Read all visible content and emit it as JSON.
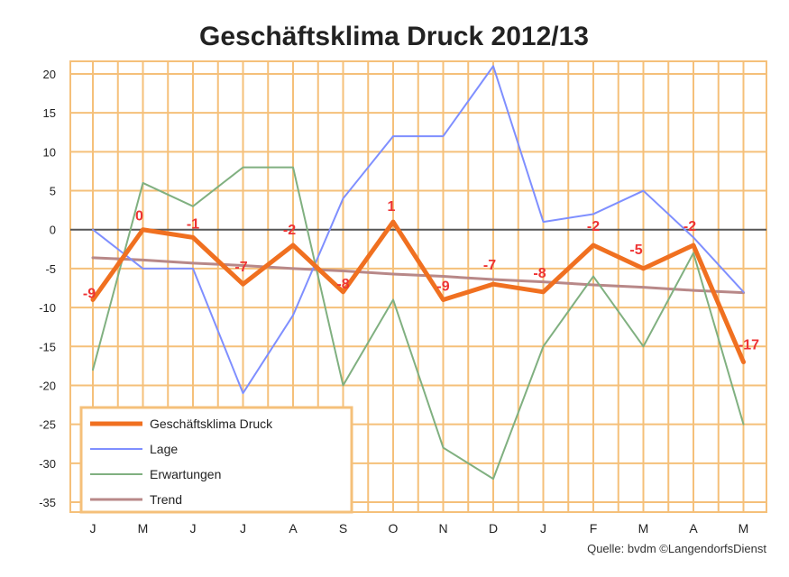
{
  "chart_data": {
    "type": "line",
    "title": "Geschäftsklima Druck 2012/13",
    "xlabel": "",
    "ylabel": "",
    "categories": [
      "J",
      "M",
      "J",
      "J",
      "A",
      "S",
      "O",
      "N",
      "D",
      "J",
      "F",
      "M",
      "A",
      "M"
    ],
    "y_ticks": [
      "20",
      "15",
      "10",
      "5",
      "0",
      "-5",
      "-10",
      "-15",
      "-20",
      "-25",
      "-30",
      "-35"
    ],
    "ylim": [
      -35,
      20
    ],
    "grid": true,
    "legend_position": "bottom-left",
    "series": [
      {
        "name": "Geschäftsklima Druck",
        "color": "#f07020",
        "values": [
          -9,
          0,
          -1,
          -7,
          -2,
          -8,
          1,
          -9,
          -7,
          -8,
          -2,
          -5,
          -2,
          -17
        ]
      },
      {
        "name": "Lage",
        "color": "#7f8fff",
        "values": [
          0,
          -5,
          -5,
          -21,
          -11,
          4,
          12,
          12,
          21,
          1,
          2,
          5,
          -1,
          -8
        ]
      },
      {
        "name": "Erwartungen",
        "color": "#80b080",
        "values": [
          -18,
          6,
          3,
          8,
          8,
          -20,
          -9,
          -28,
          -32,
          -15,
          -6,
          -15,
          -3,
          -25
        ]
      },
      {
        "name": "Trend",
        "color": "#b88888",
        "values": [
          -3.6,
          -3.9,
          -4.3,
          -4.6,
          -5.0,
          -5.3,
          -5.7,
          -6.0,
          -6.4,
          -6.7,
          -7.1,
          -7.4,
          -7.8,
          -8.1
        ]
      }
    ],
    "data_labels": [
      "-9",
      "0",
      "-1",
      "-7",
      "-2",
      "-8",
      "1",
      "-9",
      "-7",
      "-8",
      "-2",
      "-5",
      "-2",
      "-17"
    ],
    "source": "Quelle: bvdm ©LangendorfsDienst",
    "colors": {
      "grid": "#f5c07a",
      "axis": "#666666",
      "zero_line": "#555555",
      "legend_border": "#f5c07a",
      "label": "#ee3333",
      "text": "#222222"
    }
  }
}
